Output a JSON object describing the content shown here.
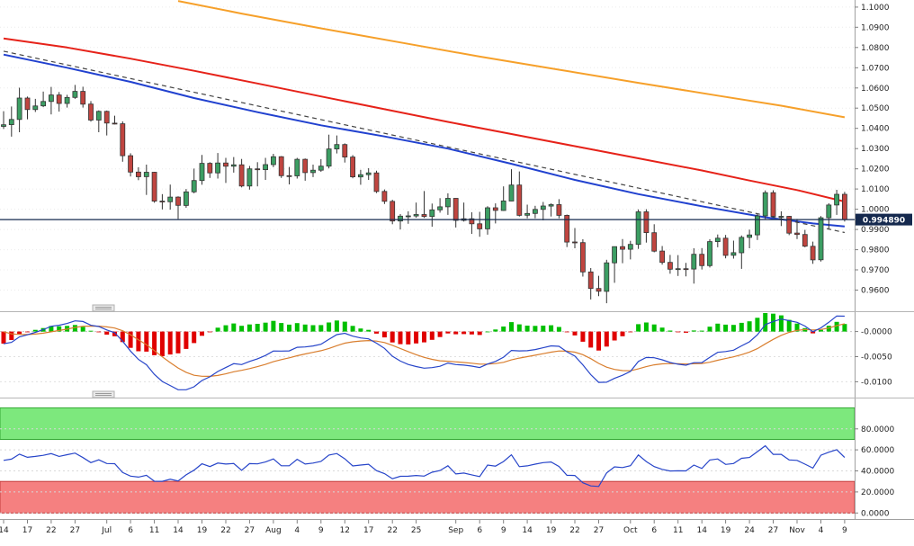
{
  "chart_data": {
    "type": "candlestick",
    "description_layout": {
      "panels": [
        "price-with-moving-averages",
        "macd",
        "rsi-with-bands"
      ],
      "grid": "dotted",
      "legend_position": "none"
    },
    "x_axis": {
      "labels": [
        [
          "14",
          0
        ],
        [
          "17",
          3
        ],
        [
          "22",
          6
        ],
        [
          "27",
          9
        ],
        [
          "Jul",
          13
        ],
        [
          "6",
          16
        ],
        [
          "11",
          19
        ],
        [
          "14",
          22
        ],
        [
          "19",
          25
        ],
        [
          "22",
          28
        ],
        [
          "27",
          31
        ],
        [
          "Aug",
          34
        ],
        [
          "4",
          37
        ],
        [
          "9",
          40
        ],
        [
          "12",
          43
        ],
        [
          "17",
          46
        ],
        [
          "22",
          49
        ],
        [
          "25",
          52
        ],
        [
          "Sep",
          57
        ],
        [
          "6",
          60
        ],
        [
          "9",
          63
        ],
        [
          "14",
          66
        ],
        [
          "19",
          69
        ],
        [
          "22",
          72
        ],
        [
          "27",
          75
        ],
        [
          "Oct",
          79
        ],
        [
          "6",
          82
        ],
        [
          "11",
          85
        ],
        [
          "14",
          88
        ],
        [
          "19",
          91
        ],
        [
          "24",
          94
        ],
        [
          "27",
          97
        ],
        [
          "Nov",
          100
        ],
        [
          "4",
          103
        ],
        [
          "9",
          106
        ]
      ]
    },
    "candles": {
      "ohlc": [
        [
          1.041,
          1.0485,
          1.0397,
          1.0418
        ],
        [
          1.0418,
          1.0508,
          1.0359,
          1.0444
        ],
        [
          1.0444,
          1.0601,
          1.0381,
          1.055
        ],
        [
          1.055,
          1.0557,
          1.0445,
          1.0493
        ],
        [
          1.0493,
          1.0546,
          1.0481,
          1.0511
        ],
        [
          1.0511,
          1.0582,
          1.0505,
          1.0533
        ],
        [
          1.0533,
          1.0605,
          1.0469,
          1.0565
        ],
        [
          1.0565,
          1.058,
          1.0483,
          1.0523
        ],
        [
          1.0523,
          1.0566,
          1.0503,
          1.0553
        ],
        [
          1.0553,
          1.0615,
          1.0546,
          1.0583
        ],
        [
          1.0583,
          1.0606,
          1.0503,
          1.052
        ],
        [
          1.052,
          1.0535,
          1.0433,
          1.0441
        ],
        [
          1.0441,
          1.0489,
          1.0381,
          1.0484
        ],
        [
          1.0484,
          1.0488,
          1.0365,
          1.0426
        ],
        [
          1.0426,
          1.0463,
          1.042,
          1.0423
        ],
        [
          1.0423,
          1.0435,
          1.0235,
          1.0265
        ],
        [
          1.0265,
          1.0277,
          1.0162,
          1.0184
        ],
        [
          1.0184,
          1.0208,
          1.0144,
          1.0161
        ],
        [
          1.0161,
          1.0221,
          1.0071,
          1.0183
        ],
        [
          1.0183,
          1.0185,
          1.0032,
          1.004
        ],
        [
          1.004,
          1.0075,
          0.9999,
          1.0037
        ],
        [
          1.0037,
          1.0122,
          0.9998,
          1.006
        ],
        [
          1.006,
          1.0064,
          0.9952,
          1.0019
        ],
        [
          1.0019,
          1.01,
          1.0007,
          1.0086
        ],
        [
          1.0086,
          1.0201,
          1.0079,
          1.0142
        ],
        [
          1.0142,
          1.0269,
          1.0121,
          1.0227
        ],
        [
          1.0227,
          1.0233,
          1.0155,
          1.018
        ],
        [
          1.018,
          1.0278,
          1.0152,
          1.0229
        ],
        [
          1.0229,
          1.0254,
          1.013,
          1.0213
        ],
        [
          1.0213,
          1.0258,
          1.0181,
          1.022
        ],
        [
          1.022,
          1.0249,
          1.0108,
          1.0115
        ],
        [
          1.0115,
          1.0214,
          1.0097,
          1.02
        ],
        [
          1.02,
          1.0233,
          1.0113,
          1.0196
        ],
        [
          1.0196,
          1.0254,
          1.0145,
          1.0221
        ],
        [
          1.0221,
          1.0274,
          1.0208,
          1.026
        ],
        [
          1.026,
          1.0263,
          1.0155,
          1.0166
        ],
        [
          1.0166,
          1.0209,
          1.0123,
          1.0165
        ],
        [
          1.0165,
          1.0254,
          1.0152,
          1.0247
        ],
        [
          1.0247,
          1.0251,
          1.0141,
          1.0181
        ],
        [
          1.0181,
          1.0221,
          1.0159,
          1.0193
        ],
        [
          1.0193,
          1.0248,
          1.0185,
          1.0213
        ],
        [
          1.0213,
          1.0369,
          1.0202,
          1.0298
        ],
        [
          1.0298,
          1.0365,
          1.0276,
          1.032
        ],
        [
          1.032,
          1.0326,
          1.0231,
          1.0258
        ],
        [
          1.0258,
          1.0268,
          1.0153,
          1.016
        ],
        [
          1.016,
          1.0195,
          1.0121,
          1.0171
        ],
        [
          1.0171,
          1.0203,
          1.0145,
          1.018
        ],
        [
          1.018,
          1.0191,
          1.008,
          1.0088
        ],
        [
          1.0088,
          1.0098,
          1.0026,
          1.0039
        ],
        [
          1.0039,
          1.0047,
          0.9926,
          0.9942
        ],
        [
          0.9942,
          0.9976,
          0.99,
          0.9966
        ],
        [
          0.9966,
          0.999,
          0.9928,
          0.9967
        ],
        [
          0.9967,
          1.0033,
          0.9958,
          0.9974
        ],
        [
          0.9974,
          1.009,
          0.9957,
          0.9964
        ],
        [
          0.9964,
          1.0028,
          0.9914,
          0.9997
        ],
        [
          0.9997,
          1.0055,
          0.9983,
          1.0012
        ],
        [
          1.0012,
          1.0079,
          0.9972,
          1.0054
        ],
        [
          1.0054,
          1.0055,
          0.991,
          0.9945
        ],
        [
          0.9945,
          1.0033,
          0.9939,
          0.9953
        ],
        [
          0.9953,
          0.9985,
          0.9878,
          0.9928
        ],
        [
          0.9928,
          0.9987,
          0.9864,
          0.9903
        ],
        [
          0.9903,
          1.0015,
          0.9874,
          1.0007
        ],
        [
          1.0007,
          1.0029,
          0.993,
          0.9994
        ],
        [
          0.9994,
          1.0113,
          0.9992,
          1.0041
        ],
        [
          1.0041,
          1.0198,
          1.004,
          1.012
        ],
        [
          1.012,
          1.0187,
          0.9964,
          0.997
        ],
        [
          0.997,
          1.0023,
          0.9955,
          0.9979
        ],
        [
          0.9979,
          1.0017,
          0.9955,
          0.9999
        ],
        [
          0.9999,
          1.0036,
          0.9945,
          1.0016
        ],
        [
          1.0016,
          1.0029,
          0.9964,
          1.0023
        ],
        [
          1.0023,
          1.005,
          0.9955,
          0.997
        ],
        [
          0.997,
          0.9974,
          0.9813,
          0.9838
        ],
        [
          0.9838,
          0.9907,
          0.9807,
          0.9835
        ],
        [
          0.9835,
          0.9852,
          0.9667,
          0.969
        ],
        [
          0.969,
          0.9709,
          0.9554,
          0.9608
        ],
        [
          0.9608,
          0.9671,
          0.957,
          0.9594
        ],
        [
          0.9594,
          0.975,
          0.9535,
          0.9735
        ],
        [
          0.9735,
          0.9816,
          0.9636,
          0.9815
        ],
        [
          0.9815,
          0.9853,
          0.9733,
          0.9802
        ],
        [
          0.9802,
          0.9844,
          0.9752,
          0.9826
        ],
        [
          0.9826,
          0.9999,
          0.9804,
          0.9987
        ],
        [
          0.9987,
          1.0,
          0.9835,
          0.9884
        ],
        [
          0.9884,
          0.9926,
          0.9787,
          0.9793
        ],
        [
          0.9793,
          0.9818,
          0.9726,
          0.9737
        ],
        [
          0.9737,
          0.9774,
          0.9681,
          0.9703
        ],
        [
          0.9703,
          0.9773,
          0.967,
          0.9706
        ],
        [
          0.9706,
          0.9735,
          0.9668,
          0.9704
        ],
        [
          0.9704,
          0.9807,
          0.9632,
          0.9777
        ],
        [
          0.9777,
          0.9808,
          0.9702,
          0.9721
        ],
        [
          0.9721,
          0.9852,
          0.9712,
          0.984
        ],
        [
          0.984,
          0.9875,
          0.9812,
          0.9857
        ],
        [
          0.9857,
          0.9873,
          0.9757,
          0.9772
        ],
        [
          0.9772,
          0.9845,
          0.9756,
          0.9785
        ],
        [
          0.9785,
          0.987,
          0.9705,
          0.9861
        ],
        [
          0.9861,
          0.9899,
          0.9807,
          0.9873
        ],
        [
          0.9873,
          0.9976,
          0.9848,
          0.9967
        ],
        [
          0.9967,
          1.0093,
          0.9952,
          1.0082
        ],
        [
          1.0082,
          1.0094,
          0.9959,
          0.9965
        ],
        [
          0.9965,
          0.999,
          0.9917,
          0.9965
        ],
        [
          0.9965,
          0.9967,
          0.9872,
          0.9882
        ],
        [
          0.9882,
          0.9952,
          0.9853,
          0.9875
        ],
        [
          0.9875,
          0.9898,
          0.9812,
          0.9817
        ],
        [
          0.9817,
          0.984,
          0.973,
          0.975
        ],
        [
          0.975,
          0.9966,
          0.9741,
          0.9958
        ],
        [
          0.9958,
          1.003,
          0.9903,
          1.0021
        ],
        [
          1.0021,
          1.0096,
          0.9972,
          1.0074
        ],
        [
          1.0074,
          1.0086,
          0.9939,
          0.9949
        ]
      ]
    },
    "main_panel": {
      "range": [
        0.95,
        1.1035
      ],
      "current_price": 0.99489,
      "current_price_label": "0.994890",
      "ticks": [
        {
          "label": "1.1000",
          "value": 1.1
        },
        {
          "label": "1.0900",
          "value": 1.09
        },
        {
          "label": "1.0800",
          "value": 1.08
        },
        {
          "label": "1.0700",
          "value": 1.07
        },
        {
          "label": "1.0600",
          "value": 1.06
        },
        {
          "label": "1.0500",
          "value": 1.05
        },
        {
          "label": "1.0400",
          "value": 1.04
        },
        {
          "label": "1.0300",
          "value": 1.03
        },
        {
          "label": "1.0200",
          "value": 1.02
        },
        {
          "label": "1.0100",
          "value": 1.01
        },
        {
          "label": "1.0000",
          "value": 1.0
        },
        {
          "label": "0.9900",
          "value": 0.99
        },
        {
          "label": "0.9800",
          "value": 0.98
        },
        {
          "label": "0.9700",
          "value": 0.97
        },
        {
          "label": "0.9600",
          "value": 0.96
        }
      ],
      "overlays": {
        "ma_orange": [
          [
            22,
            1.103
          ],
          [
            30,
            1.0968
          ],
          [
            40,
            1.0895
          ],
          [
            50,
            1.0825
          ],
          [
            60,
            1.0755
          ],
          [
            70,
            1.069
          ],
          [
            80,
            1.0625
          ],
          [
            90,
            1.0562
          ],
          [
            98,
            1.0512
          ],
          [
            106,
            1.0455
          ]
        ],
        "ma_red": [
          [
            0,
            1.0845
          ],
          [
            8,
            1.08
          ],
          [
            16,
            1.0745
          ],
          [
            24,
            1.0685
          ],
          [
            32,
            1.0622
          ],
          [
            40,
            1.0558
          ],
          [
            48,
            1.0495
          ],
          [
            56,
            1.0432
          ],
          [
            64,
            1.0372
          ],
          [
            72,
            1.0312
          ],
          [
            80,
            1.0252
          ],
          [
            88,
            1.0192
          ],
          [
            94,
            1.0142
          ],
          [
            100,
            1.0095
          ],
          [
            106,
            1.0038
          ]
        ],
        "ma_blue": [
          [
            0,
            1.0765
          ],
          [
            8,
            1.07
          ],
          [
            16,
            1.063
          ],
          [
            24,
            1.055
          ],
          [
            32,
            1.048
          ],
          [
            40,
            1.0415
          ],
          [
            48,
            1.036
          ],
          [
            56,
            1.03
          ],
          [
            64,
            1.0225
          ],
          [
            72,
            1.0145
          ],
          [
            80,
            1.0075
          ],
          [
            88,
            1.0015
          ],
          [
            96,
            0.996
          ],
          [
            102,
            0.993
          ],
          [
            106,
            0.9915
          ]
        ],
        "trendline": [
          [
            0,
            1.0782
          ],
          [
            106,
            0.9885
          ]
        ]
      }
    },
    "macd_panel": {
      "range": [
        -0.0128,
        0.0037
      ],
      "ticks": [
        {
          "label": "-0.0000",
          "value": 0
        },
        {
          "label": "-0.0050",
          "value": -0.005
        },
        {
          "label": "-0.0100",
          "value": -0.01
        }
      ]
    },
    "rsi_panel": {
      "range": [
        -4,
        108
      ],
      "bands": {
        "upper": [
          70,
          100
        ],
        "lower": [
          0,
          30
        ]
      },
      "ticks": [
        {
          "label": "80.0000",
          "value": 80
        },
        {
          "label": "60.0000",
          "value": 60
        },
        {
          "label": "40.0000",
          "value": 40
        },
        {
          "label": "20.0000",
          "value": 20
        },
        {
          "label": "0.0000",
          "value": 0
        }
      ]
    },
    "colors": {
      "candle_up": "#3c9e63",
      "candle_down": "#c04540",
      "candle_outline": "#333333",
      "ma_blue": "#2141cf",
      "ma_red": "#e62219",
      "ma_orange": "#f6a02a",
      "trendline": "#444444",
      "price_line": "#15294e",
      "macd_pos": "#00bf00",
      "macd_neg": "#e00000",
      "macd_line": "#2745c9",
      "macd_signal": "#d97e2e",
      "rsi_line": "#2745c9",
      "band_up_fill": "#7de87d",
      "band_up_border": "#35a935",
      "band_dn_fill": "#f58080",
      "band_dn_border": "#c23b3b"
    }
  }
}
